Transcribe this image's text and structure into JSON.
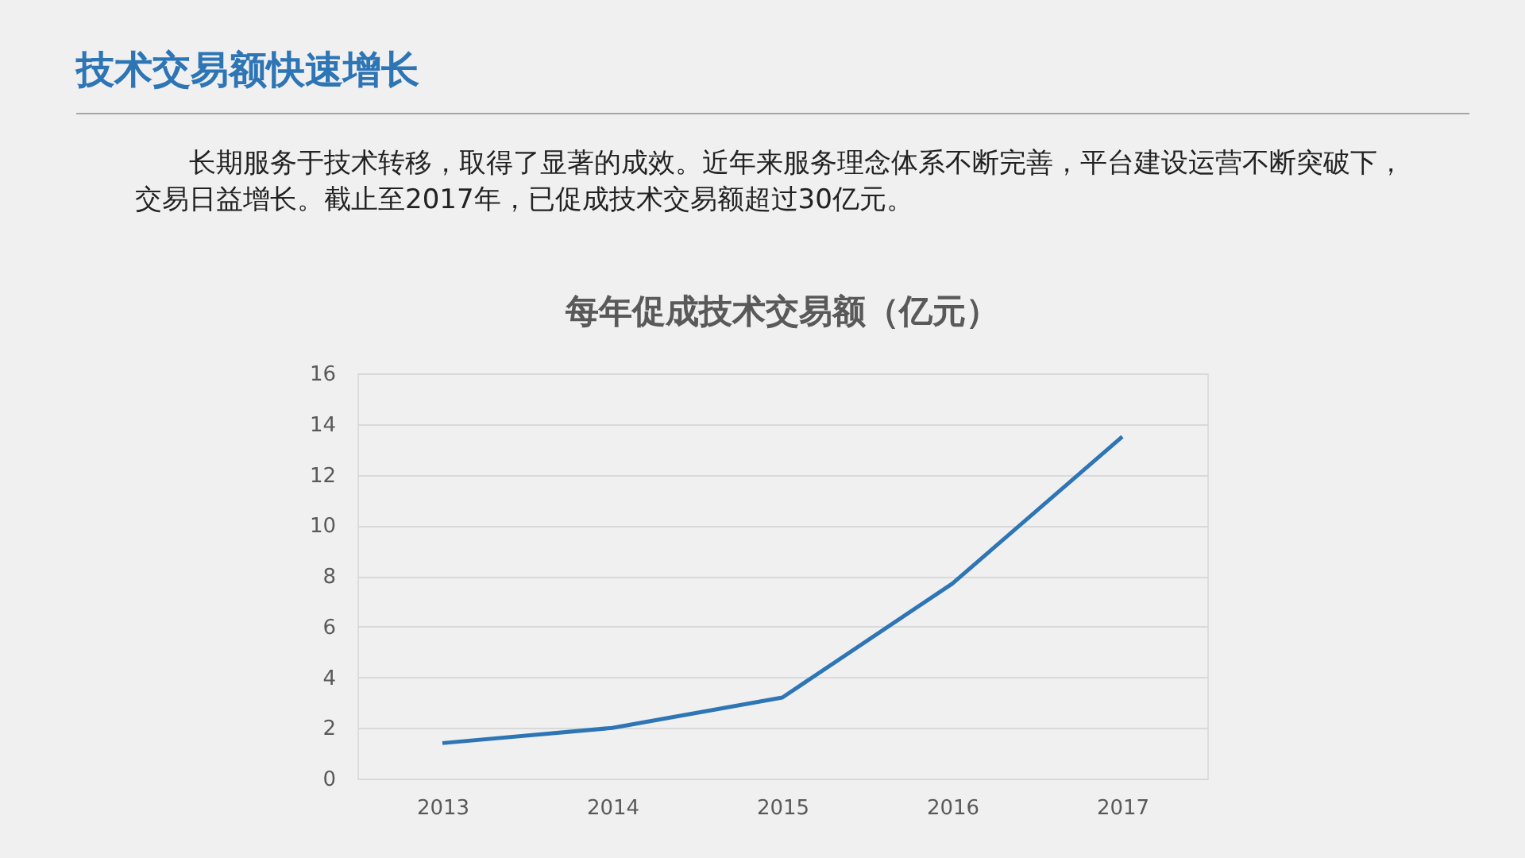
{
  "chart_data": {
    "type": "line",
    "title": "技术交易额快速增长",
    "subtitle": "每年促成技术交易额（亿元）",
    "annotations": [
      "长期服务于技术转移，取得了显著的成效。近年来服务理念体系不断完善，平台建设运营不断突破下，交易日益增长。截止至2017年，已促成技术交易额超过30亿元。"
    ],
    "categories": [
      "2013",
      "2014",
      "2015",
      "2016",
      "2017"
    ],
    "series": [
      {
        "color": "#2e75b6",
        "values": [
          1.4,
          2.0,
          3.2,
          7.7,
          13.5
        ]
      }
    ],
    "ylim": [
      0,
      16
    ],
    "yticks": [
      0,
      2,
      4,
      6,
      8,
      10,
      12,
      14,
      16
    ],
    "grid": "y",
    "legend": false,
    "marker": "none",
    "line_style": "solid"
  }
}
